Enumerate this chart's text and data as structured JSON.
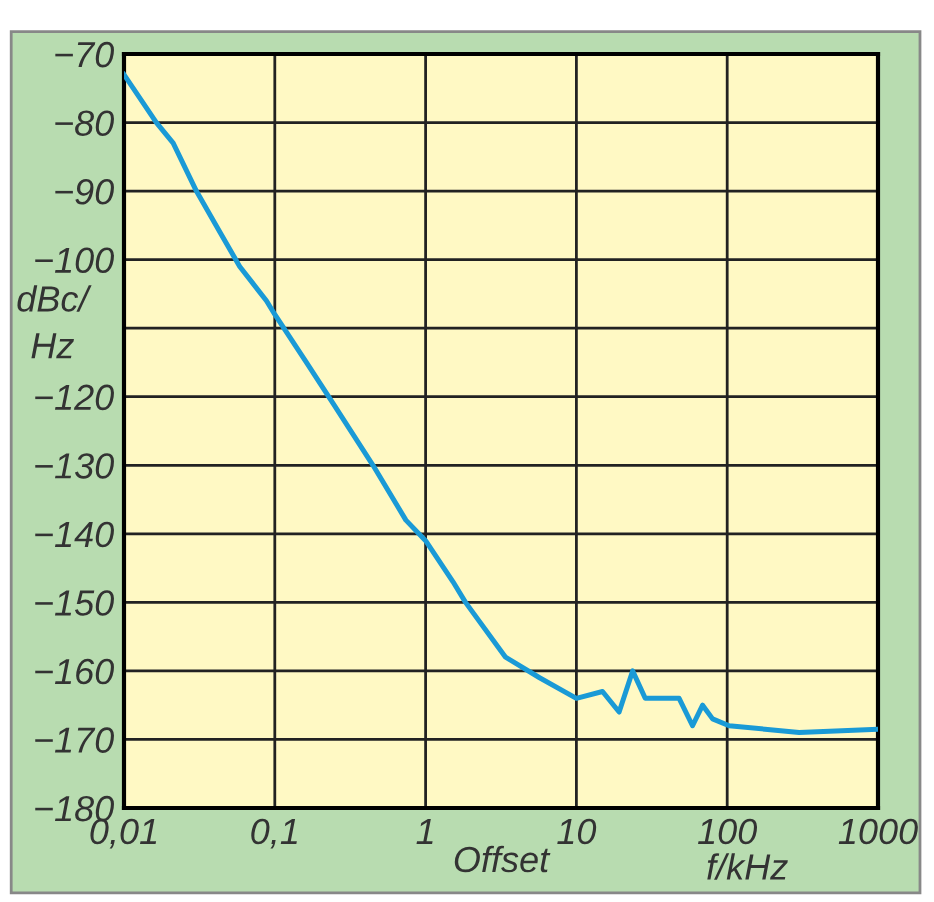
{
  "chart_data": {
    "type": "line",
    "xlabel": "Offset",
    "ylabel": "dBc/\nHz",
    "annotations": [
      "f/kHz"
    ],
    "log": "x",
    "grid": true,
    "legend": false,
    "marker": "none",
    "line_style": "solid",
    "xlim": [
      0.01,
      1000
    ],
    "xticks": [
      {
        "value": 0.01,
        "label": "0,01"
      },
      {
        "value": 0.1,
        "label": "0,1"
      },
      1,
      10,
      100,
      1000
    ],
    "ylim": [
      -180,
      -70
    ],
    "yticks": [
      {
        "value": -180,
        "label": "−180"
      },
      {
        "value": -170,
        "label": "−170"
      },
      {
        "value": -160,
        "label": "−160"
      },
      {
        "value": -150,
        "label": "−150"
      },
      {
        "value": -140,
        "label": "−140"
      },
      {
        "value": -130,
        "label": "−130"
      },
      {
        "value": -120,
        "label": "−120"
      },
      {
        "value": -110,
        "label": null
      },
      {
        "value": -100,
        "label": "−100"
      },
      {
        "value": -90,
        "label": "−90"
      },
      {
        "value": -80,
        "label": "−80"
      },
      {
        "value": -70,
        "label": "−70"
      }
    ],
    "series": [
      {
        "color": "#1a9ad6",
        "x": [
          0.01,
          0.0164,
          0.0212,
          0.0302,
          0.0433,
          0.0585,
          0.088,
          0.1,
          0.162,
          0.244,
          0.448,
          0.74,
          1,
          1.52,
          1.84,
          3.39,
          5.7,
          10,
          14.9,
          19.2,
          23.6,
          28.6,
          48,
          58.9,
          68.7,
          80,
          103,
          178,
          300,
          1000
        ],
        "values": [
          -73,
          -80,
          -83,
          -90,
          -96,
          -101,
          -106,
          -108,
          -115,
          -121,
          -130,
          -138,
          -141,
          -147,
          -150,
          -158,
          -161,
          -164,
          -163,
          -166,
          -160,
          -164,
          -164,
          -168,
          -165,
          -167,
          -168,
          -168.5,
          -169,
          -168.5
        ]
      }
    ]
  }
}
